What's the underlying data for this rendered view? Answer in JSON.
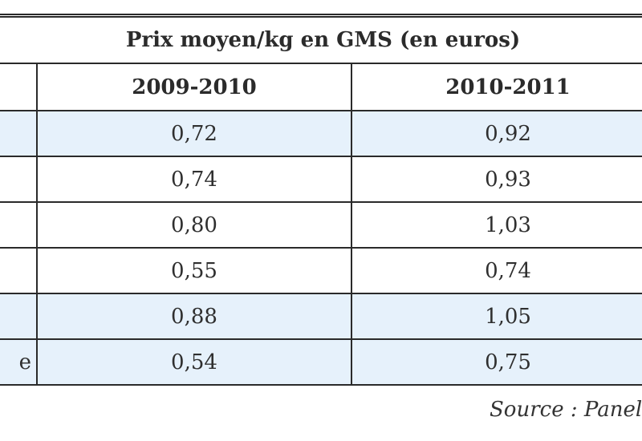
{
  "chart_data": {
    "type": "table",
    "title": "Prix moyen/kg en GMS (en euros)",
    "columns": [
      "2009-2010",
      "2010-2011"
    ],
    "rows": [
      {
        "label": "",
        "values": [
          "0,72",
          "0,92"
        ]
      },
      {
        "label": "",
        "values": [
          "0,74",
          "0,93"
        ]
      },
      {
        "label": "",
        "values": [
          "0,80",
          "1,03"
        ]
      },
      {
        "label": "",
        "values": [
          "0,55",
          "0,74"
        ]
      },
      {
        "label": "",
        "values": [
          "0,88",
          "1,05"
        ]
      },
      {
        "label": "e",
        "values": [
          "0,54",
          "0,75"
        ]
      }
    ],
    "row_shading": [
      "#e6f1fb",
      "#ffffff",
      "#ffffff",
      "#ffffff",
      "#e6f1fb",
      "#e6f1fb"
    ],
    "source": "Source : Panel d"
  }
}
